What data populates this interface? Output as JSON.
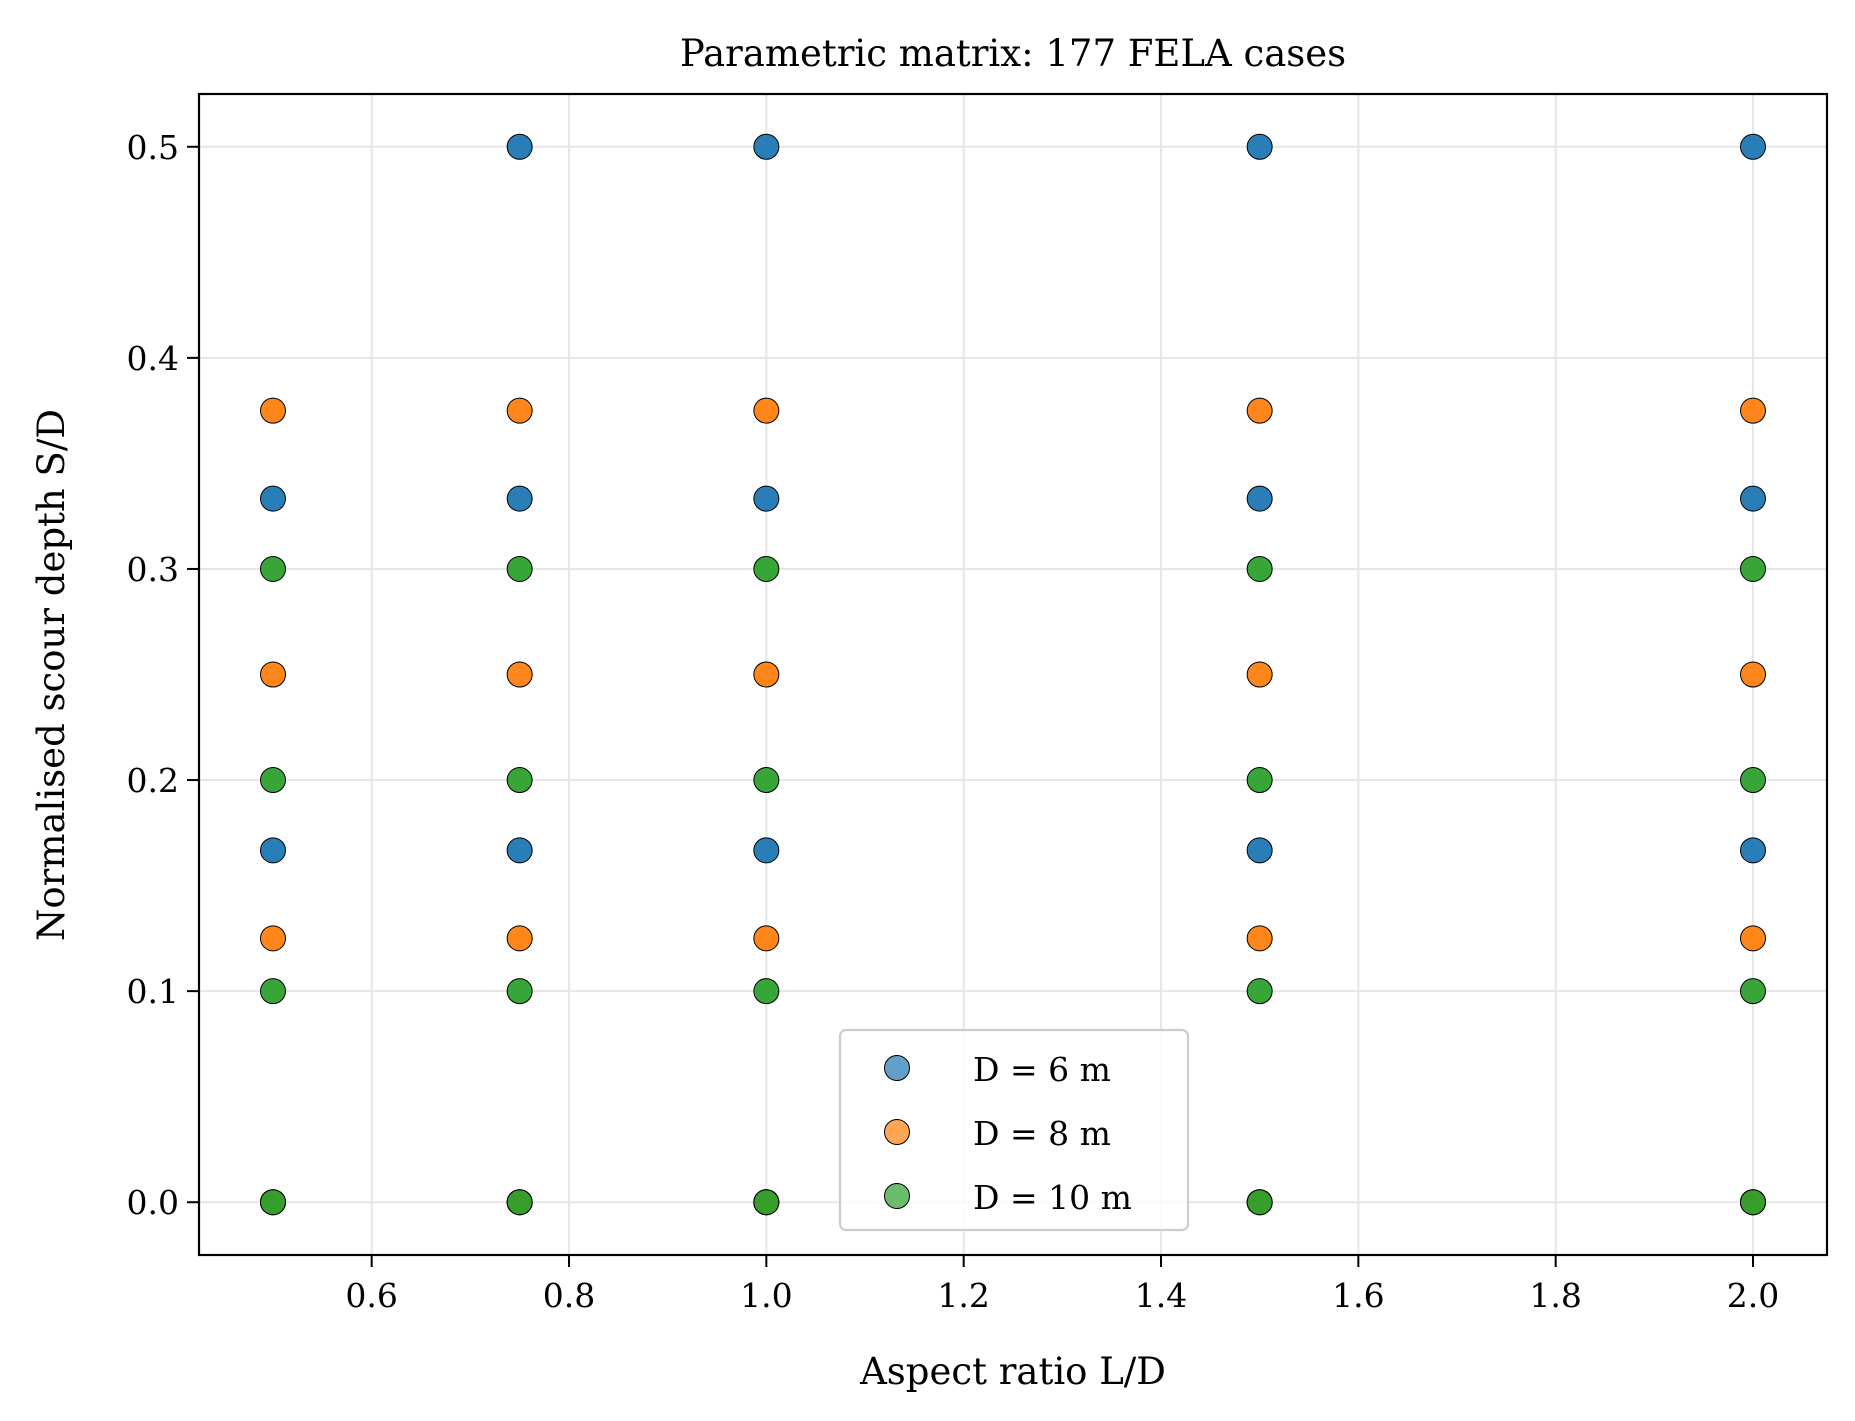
{
  "chart_data": {
    "type": "scatter",
    "title": "Parametric matrix: 177 FELA cases",
    "xlabel": "Aspect ratio L/D",
    "ylabel": "Normalised scour depth S/D",
    "xlim": [
      0.425,
      2.075
    ],
    "ylim": [
      -0.025,
      0.525
    ],
    "xticks": [
      0.6,
      0.8,
      1.0,
      1.2,
      1.4,
      1.6,
      1.8,
      2.0
    ],
    "xtick_labels": [
      "0.6",
      "0.8",
      "1.0",
      "1.2",
      "1.4",
      "1.6",
      "1.8",
      "2.0"
    ],
    "yticks": [
      0.0,
      0.1,
      0.2,
      0.3,
      0.4,
      0.5
    ],
    "ytick_labels": [
      "0.0",
      "0.1",
      "0.2",
      "0.3",
      "0.4",
      "0.5"
    ],
    "grid": true,
    "legend_position": "lower-center",
    "series": [
      {
        "name": "D = 6 m",
        "color": "#1f77b4",
        "points": [
          [
            0.5,
            0.0
          ],
          [
            0.5,
            0.1667
          ],
          [
            0.5,
            0.3333
          ],
          [
            0.75,
            0.0
          ],
          [
            0.75,
            0.1667
          ],
          [
            0.75,
            0.3333
          ],
          [
            0.75,
            0.5
          ],
          [
            1.0,
            0.0
          ],
          [
            1.0,
            0.1667
          ],
          [
            1.0,
            0.3333
          ],
          [
            1.0,
            0.5
          ],
          [
            1.5,
            0.0
          ],
          [
            1.5,
            0.1667
          ],
          [
            1.5,
            0.3333
          ],
          [
            1.5,
            0.5
          ],
          [
            2.0,
            0.0
          ],
          [
            2.0,
            0.1667
          ],
          [
            2.0,
            0.3333
          ],
          [
            2.0,
            0.5
          ]
        ]
      },
      {
        "name": "D = 8 m",
        "color": "#ff7f0e",
        "points": [
          [
            0.5,
            0.0
          ],
          [
            0.5,
            0.125
          ],
          [
            0.5,
            0.25
          ],
          [
            0.5,
            0.375
          ],
          [
            0.75,
            0.0
          ],
          [
            0.75,
            0.125
          ],
          [
            0.75,
            0.25
          ],
          [
            0.75,
            0.375
          ],
          [
            1.0,
            0.0
          ],
          [
            1.0,
            0.125
          ],
          [
            1.0,
            0.25
          ],
          [
            1.0,
            0.375
          ],
          [
            1.5,
            0.0
          ],
          [
            1.5,
            0.125
          ],
          [
            1.5,
            0.25
          ],
          [
            1.5,
            0.375
          ],
          [
            2.0,
            0.0
          ],
          [
            2.0,
            0.125
          ],
          [
            2.0,
            0.25
          ],
          [
            2.0,
            0.375
          ]
        ]
      },
      {
        "name": "D = 10 m",
        "color": "#2ca02c",
        "points": [
          [
            0.5,
            0.0
          ],
          [
            0.5,
            0.1
          ],
          [
            0.5,
            0.2
          ],
          [
            0.5,
            0.3
          ],
          [
            0.75,
            0.0
          ],
          [
            0.75,
            0.1
          ],
          [
            0.75,
            0.2
          ],
          [
            0.75,
            0.3
          ],
          [
            1.0,
            0.0
          ],
          [
            1.0,
            0.1
          ],
          [
            1.0,
            0.2
          ],
          [
            1.0,
            0.3
          ],
          [
            1.5,
            0.0
          ],
          [
            1.5,
            0.1
          ],
          [
            1.5,
            0.2
          ],
          [
            1.5,
            0.3
          ],
          [
            2.0,
            0.0
          ],
          [
            2.0,
            0.1
          ],
          [
            2.0,
            0.2
          ],
          [
            2.0,
            0.3
          ]
        ]
      }
    ]
  }
}
